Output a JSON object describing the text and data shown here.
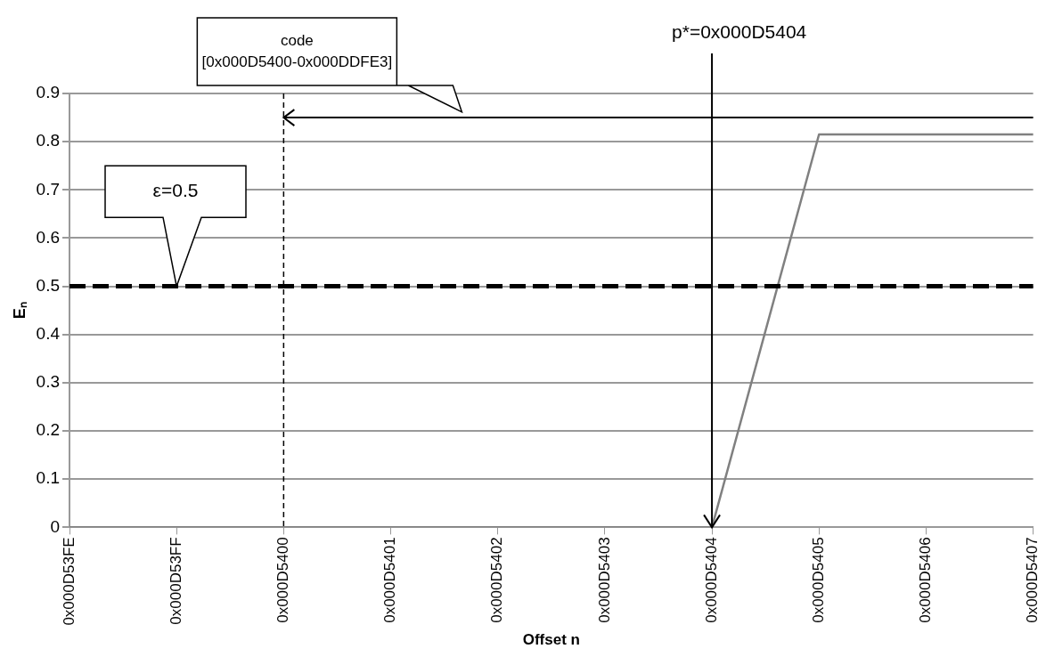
{
  "chart_data": {
    "type": "line",
    "xlabel": "Offset n",
    "ylabel": "Eₙ",
    "categories": [
      "0x000D53FE",
      "0x000D53FF",
      "0x000D5400",
      "0x000D5401",
      "0x000D5402",
      "0x000D5403",
      "0x000D5404",
      "0x000D5405",
      "0x000D5406",
      "0x000D5407"
    ],
    "series": [
      {
        "color": "#808080",
        "values": [
          0,
          0,
          0,
          0,
          0,
          0,
          0,
          0.815,
          0.815,
          0.815
        ]
      }
    ],
    "ylim": [
      0,
      0.9
    ],
    "yticks": [
      0,
      0.1,
      0.2,
      0.3,
      0.4,
      0.5,
      0.6,
      0.7,
      0.8,
      0.9
    ],
    "grid": "y",
    "legend": false,
    "marker": "none",
    "line_style": "solid",
    "ref_lines": [
      {
        "axis": "y",
        "value": 0.5,
        "label": "ε=0.5",
        "color": "#000000",
        "line_style": "dashed"
      },
      {
        "axis": "x",
        "value": "0x000D5400",
        "color": "#000000",
        "line_style": "dashed"
      },
      {
        "axis": "y",
        "value": 0.85,
        "color": "#000000",
        "line_style": "solid"
      }
    ],
    "annotations": [
      "code\n[0x000D5400-0x000DDFE3]",
      {
        "text": "p*=0x000D5404",
        "x": "0x000D5404",
        "y": 0
      }
    ]
  }
}
